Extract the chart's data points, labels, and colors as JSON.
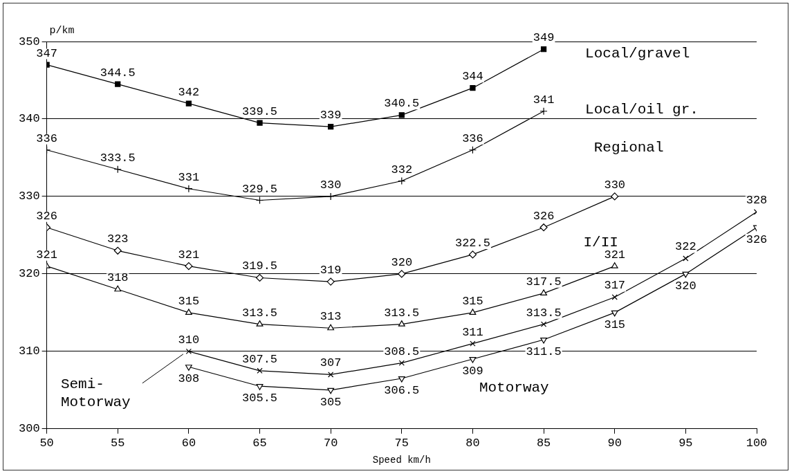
{
  "chart_data": {
    "type": "line",
    "xlabel": "Speed km/h",
    "ylabel": "p/km",
    "xlim": [
      50,
      100
    ],
    "xticks": [
      50,
      55,
      60,
      65,
      70,
      75,
      80,
      85,
      90,
      95,
      100
    ],
    "ylim": [
      300,
      350
    ],
    "yticks": [
      300,
      310,
      320,
      330,
      340,
      350
    ],
    "grid": "y",
    "legend": false,
    "data_labels": true,
    "line_style": "solid",
    "series": [
      {
        "name": "Local/gravel",
        "color": "#000000",
        "marker": "square",
        "x": [
          50,
          55,
          60,
          65,
          70,
          75,
          80,
          85
        ],
        "values": [
          347,
          344.5,
          342,
          339.5,
          339,
          340.5,
          344,
          349
        ]
      },
      {
        "name": "Local/oil gr.",
        "color": "#000000",
        "marker": "cross",
        "x": [
          50,
          55,
          60,
          65,
          70,
          75,
          80,
          85
        ],
        "values": [
          336,
          333.5,
          331,
          329.5,
          330,
          332,
          336,
          341
        ]
      },
      {
        "name": "Regional",
        "color": "#000000",
        "marker": "diamond",
        "x": [
          50,
          55,
          60,
          65,
          70,
          75,
          80,
          85,
          90
        ],
        "values": [
          326,
          323,
          321,
          319.5,
          319,
          320,
          322.5,
          326,
          330
        ]
      },
      {
        "name": "I/II",
        "color": "#000000",
        "marker": "triangle",
        "x": [
          50,
          55,
          60,
          65,
          70,
          75,
          80,
          85,
          90
        ],
        "values": [
          321,
          318,
          315,
          313.5,
          313,
          313.5,
          315,
          317.5,
          321
        ]
      },
      {
        "name": "Semi-Motorway",
        "color": "#000000",
        "marker": "cross",
        "x": [
          60,
          65,
          70,
          75,
          80,
          85,
          90,
          95,
          100
        ],
        "values": [
          310,
          307.5,
          307,
          308.5,
          311,
          313.5,
          317,
          322,
          328
        ]
      },
      {
        "name": "Motorway",
        "color": "#000000",
        "marker": "triangle",
        "x": [
          60,
          65,
          70,
          75,
          80,
          85,
          90,
          95,
          100
        ],
        "values": [
          308,
          305.5,
          305,
          306.5,
          309,
          311.5,
          315,
          320,
          326
        ]
      }
    ]
  }
}
